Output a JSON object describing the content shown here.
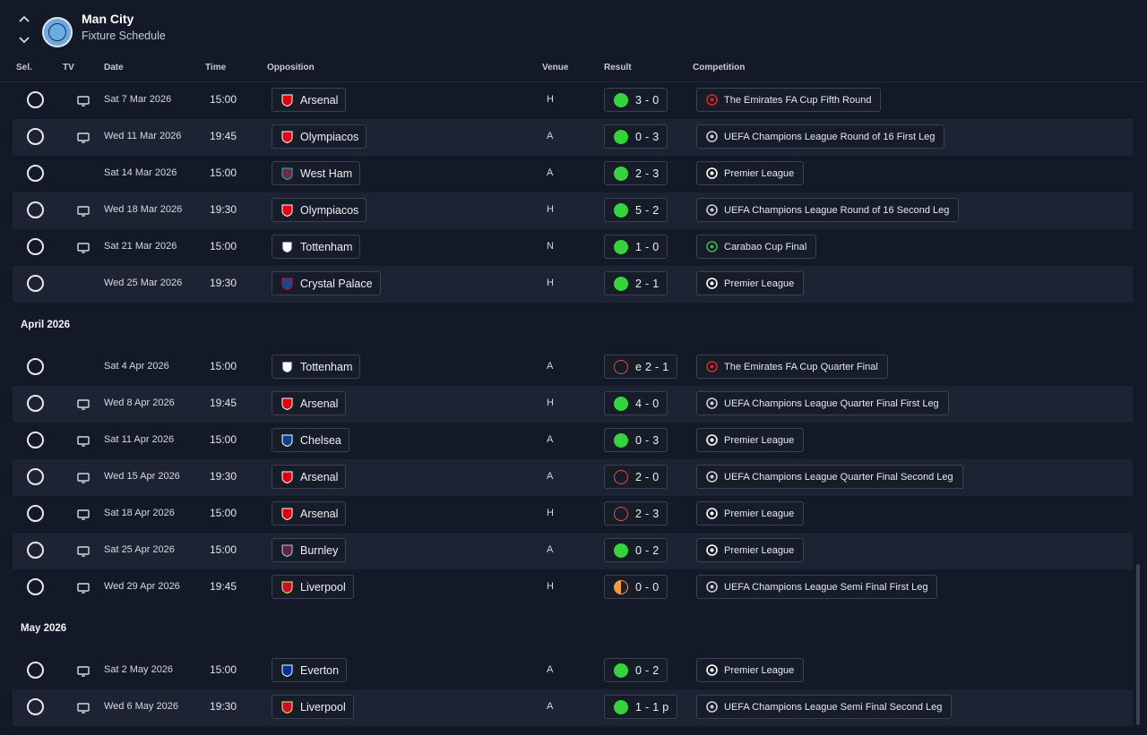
{
  "header": {
    "club_name": "Man City",
    "screen_title": "Fixture Schedule"
  },
  "columns": {
    "sel": "Sel.",
    "tv": "TV",
    "date": "Date",
    "time": "Time",
    "opposition": "Opposition",
    "venue": "Venue",
    "result": "Result",
    "competition": "Competition"
  },
  "colors": {
    "win": "#36d43c",
    "loss": "#e54b4b",
    "draw": "#f29b49",
    "background": "#141927",
    "row_alt": "#1d2332"
  },
  "rows": [
    {
      "kind": "fixture",
      "tv": true,
      "date": "Sat 7 Mar 2026",
      "time": "15:00",
      "opponent": "Arsenal",
      "crest": "arsenal-crest",
      "venue": "H",
      "outcome": "win",
      "result": "3 - 0",
      "competition": "The Emirates FA Cup Fifth Round",
      "comp_icon": "fa-cup-icon"
    },
    {
      "kind": "fixture",
      "tv": true,
      "date": "Wed 11 Mar 2026",
      "time": "19:45",
      "opponent": "Olympiacos",
      "crest": "olympiacos-crest",
      "venue": "A",
      "outcome": "win",
      "result": "0 - 3",
      "competition": "UEFA Champions League Round of 16  First Leg",
      "comp_icon": "champions-league-trophy-icon"
    },
    {
      "kind": "fixture",
      "tv": false,
      "date": "Sat 14 Mar 2026",
      "time": "15:00",
      "opponent": "West Ham",
      "crest": "west-ham-crest",
      "venue": "A",
      "outcome": "win",
      "result": "2 - 3",
      "competition": "Premier League",
      "comp_icon": "premier-league-icon"
    },
    {
      "kind": "fixture",
      "tv": true,
      "date": "Wed 18 Mar 2026",
      "time": "19:30",
      "opponent": "Olympiacos",
      "crest": "olympiacos-crest",
      "venue": "H",
      "outcome": "win",
      "result": "5 - 2",
      "competition": "UEFA Champions League Round of 16  Second Leg",
      "comp_icon": "champions-league-trophy-icon"
    },
    {
      "kind": "fixture",
      "tv": true,
      "date": "Sat 21 Mar 2026",
      "time": "15:00",
      "opponent": "Tottenham",
      "crest": "tottenham-crest",
      "venue": "N",
      "outcome": "win",
      "result": "1 - 0",
      "competition": "Carabao Cup Final",
      "comp_icon": "carabao-cup-icon"
    },
    {
      "kind": "fixture",
      "tv": false,
      "date": "Wed 25 Mar 2026",
      "time": "19:30",
      "opponent": "Crystal Palace",
      "crest": "crystal-palace-crest",
      "venue": "H",
      "outcome": "win",
      "result": "2 - 1",
      "competition": "Premier League",
      "comp_icon": "premier-league-icon"
    },
    {
      "kind": "month",
      "label": "April 2026"
    },
    {
      "kind": "fixture",
      "tv": false,
      "date": "Sat 4 Apr 2026",
      "time": "15:00",
      "opponent": "Tottenham",
      "crest": "tottenham-crest",
      "venue": "A",
      "outcome": "loss",
      "result": "e 2 - 1",
      "competition": "The Emirates FA Cup Quarter Final",
      "comp_icon": "fa-cup-icon"
    },
    {
      "kind": "fixture",
      "tv": true,
      "date": "Wed 8 Apr 2026",
      "time": "19:45",
      "opponent": "Arsenal",
      "crest": "arsenal-crest",
      "venue": "H",
      "outcome": "win",
      "result": "4 - 0",
      "competition": "UEFA Champions League Quarter Final First Leg",
      "comp_icon": "champions-league-trophy-icon"
    },
    {
      "kind": "fixture",
      "tv": true,
      "date": "Sat 11 Apr 2026",
      "time": "15:00",
      "opponent": "Chelsea",
      "crest": "chelsea-crest",
      "venue": "A",
      "outcome": "win",
      "result": "0 - 3",
      "competition": "Premier League",
      "comp_icon": "premier-league-icon"
    },
    {
      "kind": "fixture",
      "tv": true,
      "date": "Wed 15 Apr 2026",
      "time": "19:30",
      "opponent": "Arsenal",
      "crest": "arsenal-crest",
      "venue": "A",
      "outcome": "loss",
      "result": "2 - 0",
      "competition": "UEFA Champions League Quarter Final Second Leg",
      "comp_icon": "champions-league-trophy-icon"
    },
    {
      "kind": "fixture",
      "tv": true,
      "date": "Sat 18 Apr 2026",
      "time": "15:00",
      "opponent": "Arsenal",
      "crest": "arsenal-crest",
      "venue": "H",
      "outcome": "loss",
      "result": "2 - 3",
      "competition": "Premier League",
      "comp_icon": "premier-league-icon"
    },
    {
      "kind": "fixture",
      "tv": true,
      "date": "Sat 25 Apr 2026",
      "time": "15:00",
      "opponent": "Burnley",
      "crest": "burnley-crest",
      "venue": "A",
      "outcome": "win",
      "result": "0 - 2",
      "competition": "Premier League",
      "comp_icon": "premier-league-icon"
    },
    {
      "kind": "fixture",
      "tv": true,
      "date": "Wed 29 Apr 2026",
      "time": "19:45",
      "opponent": "Liverpool",
      "crest": "liverpool-crest",
      "venue": "H",
      "outcome": "draw",
      "result": "0 - 0",
      "competition": "UEFA Champions League Semi Final First Leg",
      "comp_icon": "champions-league-trophy-icon"
    },
    {
      "kind": "month",
      "label": "May 2026"
    },
    {
      "kind": "fixture",
      "tv": true,
      "date": "Sat 2 May 2026",
      "time": "15:00",
      "opponent": "Everton",
      "crest": "everton-crest",
      "venue": "A",
      "outcome": "win",
      "result": "0 - 2",
      "competition": "Premier League",
      "comp_icon": "premier-league-icon"
    },
    {
      "kind": "fixture",
      "tv": true,
      "date": "Wed 6 May 2026",
      "time": "19:30",
      "opponent": "Liverpool",
      "crest": "liverpool-crest",
      "venue": "A",
      "outcome": "win",
      "result": "1 - 1 p",
      "competition": "UEFA Champions League Semi Final Second Leg",
      "comp_icon": "champions-league-trophy-icon"
    }
  ]
}
